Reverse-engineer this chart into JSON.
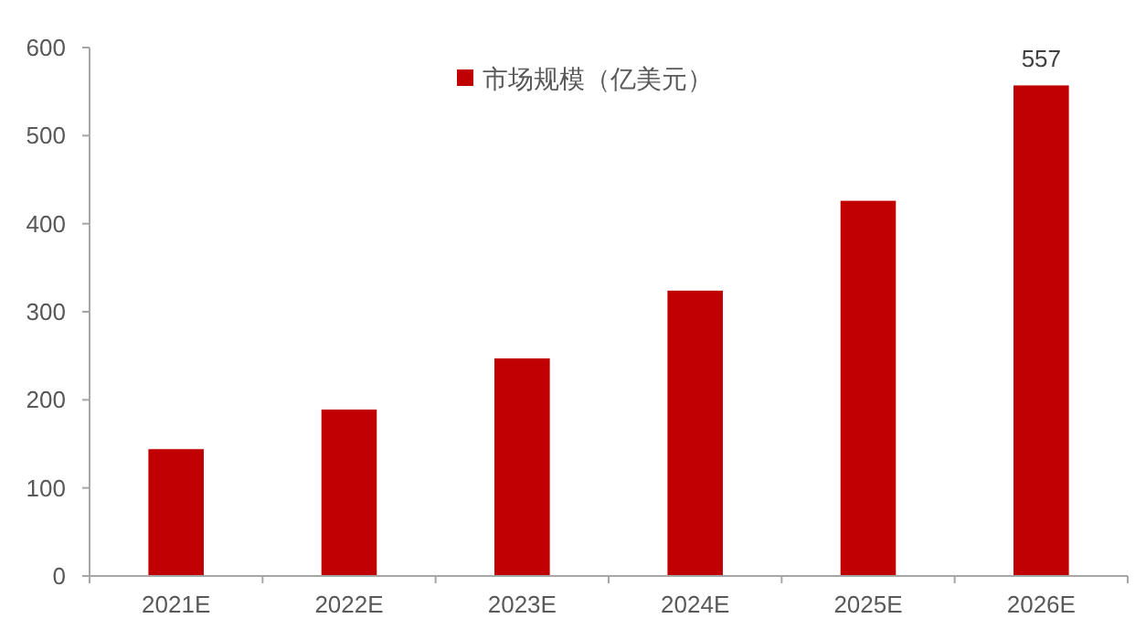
{
  "chart_data": {
    "type": "bar",
    "categories": [
      "2021E",
      "2022E",
      "2023E",
      "2024E",
      "2025E",
      "2026E"
    ],
    "series": [
      {
        "name": "市场规模（亿美元）",
        "color": "#c00000",
        "values": [
          144,
          189,
          247,
          324,
          426,
          557
        ],
        "value_labels": [
          null,
          null,
          null,
          null,
          null,
          "557"
        ]
      }
    ],
    "ylim": [
      0,
      600
    ],
    "yticks": [
      0,
      100,
      200,
      300,
      400,
      500,
      600
    ],
    "legend": "top",
    "grid": false
  }
}
